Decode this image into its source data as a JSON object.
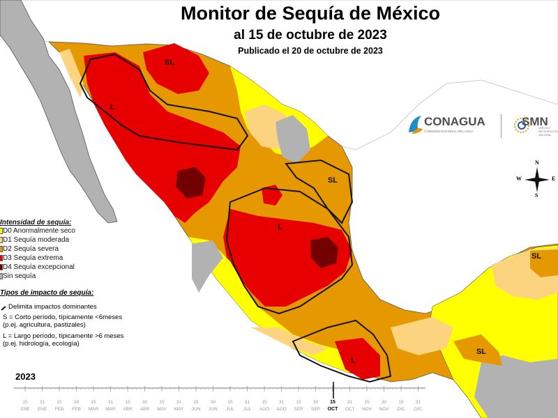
{
  "header": {
    "title": "Monitor de Sequía de México",
    "subtitle": "al 15 de octubre de 2023",
    "published": "Publicado el 20 de octubre de 2023"
  },
  "logos": {
    "conagua": {
      "name": "CONAGUA",
      "tagline": "COMISIÓN NACIONAL DEL AGUA",
      "icon": "conagua-emblem-icon"
    },
    "smn": {
      "name": "SMN",
      "tagline": "SERVICIO METEOROLÓGICO NACIONAL",
      "icon": "smn-emblem-icon"
    }
  },
  "compass": {
    "n": "N",
    "s": "S",
    "e": "E",
    "w": "W"
  },
  "legend": {
    "heading": "Intensidad de sequía:",
    "items": [
      {
        "code": "D0",
        "label": "D0 Anormalmente seco",
        "color": "#ffff00"
      },
      {
        "code": "D1",
        "label": "D1 Sequía moderada",
        "color": "#fcd37f"
      },
      {
        "code": "D2",
        "label": "D2 Sequía severa",
        "color": "#e69800"
      },
      {
        "code": "D3",
        "label": "D3 Sequía extrema",
        "color": "#e60000"
      },
      {
        "code": "D4",
        "label": "D4 Sequía excepcional",
        "color": "#730000"
      },
      {
        "code": "none",
        "label": "Sin sequía",
        "color": "#b2b2b2"
      }
    ]
  },
  "impact_legend": {
    "heading": "Tipos de impacto de sequía:",
    "boundary": "Delimita impactos dominantes",
    "short_term": [
      "S = Corto período, típicamente <6meses",
      "(p.ej. agricultura, pastizales)"
    ],
    "long_term": [
      "L = Largo período, típicamente >6 meses",
      "(p.ej. hidrología, ecología)"
    ]
  },
  "map_labels": [
    "SL",
    "L",
    "SL",
    "L",
    "SL",
    "L",
    "SL"
  ],
  "timeline": {
    "year": "2023",
    "days": [
      "15",
      "31",
      "15",
      "28",
      "15",
      "31",
      "15",
      "30",
      "15",
      "31",
      "15",
      "30",
      "15",
      "31",
      "15",
      "31",
      "15",
      "30",
      "15",
      "31",
      "15",
      "30",
      "15",
      "31"
    ],
    "months": [
      "ENE",
      "ENE",
      "FEB",
      "FEB",
      "MAR",
      "MAR",
      "ABR",
      "ABR",
      "MAY",
      "MAY",
      "JUN",
      "JUN",
      "JUL",
      "JUL",
      "AGO",
      "AGO",
      "SEP",
      "SEP",
      "OCT",
      "OCT",
      "NOV",
      "NOV",
      "DIC",
      "DIC"
    ],
    "current_index": 18,
    "current_day": "15",
    "current_month": "OCT"
  }
}
